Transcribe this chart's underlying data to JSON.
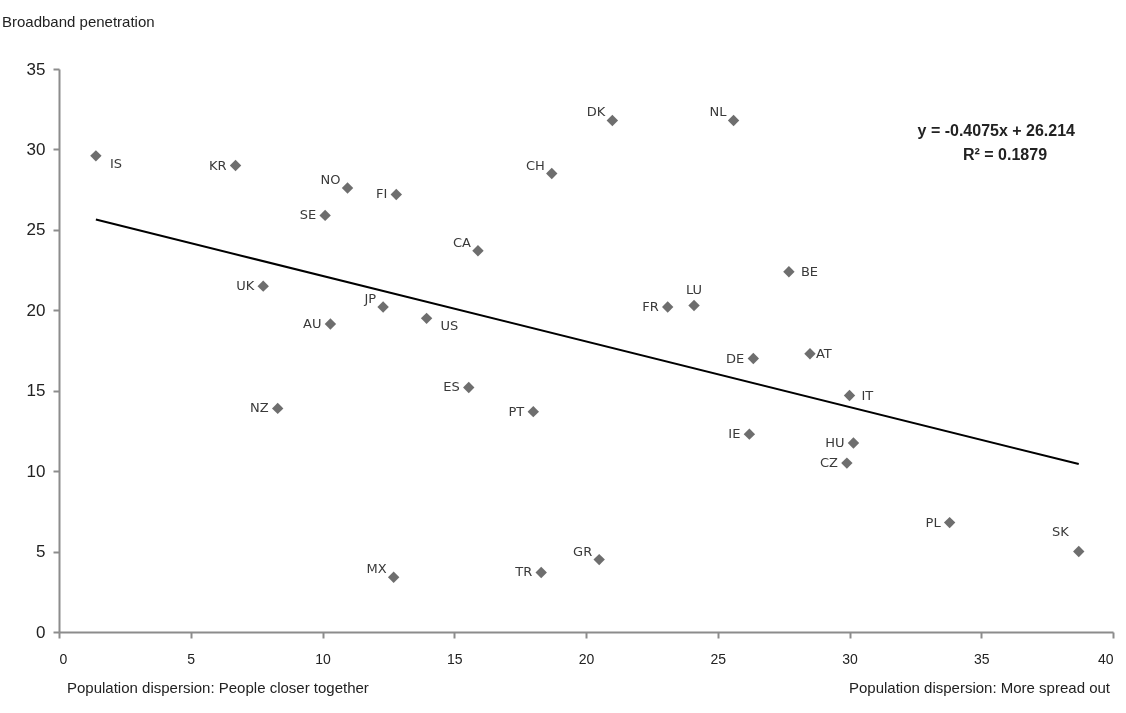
{
  "chart_data": {
    "type": "scatter",
    "ylabel": "Broadband penetration",
    "annotations": [
      "y = -0.4075x + 26.214",
      "R² = 0.1879",
      "Population dispersion: People closer together",
      "Population dispersion: More spread out"
    ],
    "xlim": [
      0,
      40
    ],
    "xticks": [
      0,
      5,
      10,
      15,
      20,
      25,
      30,
      35,
      40
    ],
    "ylim": [
      0,
      35
    ],
    "yticks": [
      0,
      5,
      10,
      15,
      20,
      25,
      30,
      35
    ],
    "grid": false,
    "series": [
      {
        "marker": "diamond",
        "color": "#6e6e6e",
        "x": [
          1.4,
          6.7,
          10.95,
          12.8,
          10.1,
          7.75,
          10.3,
          12.3,
          13.95,
          15.9,
          18.7,
          21.0,
          25.6,
          23.1,
          24.1,
          27.7,
          26.35,
          28.5,
          30.0,
          30.15,
          29.9,
          33.8,
          38.7,
          26.2,
          8.3,
          12.7,
          15.55,
          18.0,
          18.3,
          20.5
        ],
        "values": [
          29.6,
          29.0,
          27.6,
          27.2,
          25.9,
          21.5,
          19.15,
          20.2,
          19.5,
          23.7,
          28.5,
          31.8,
          31.8,
          20.2,
          20.3,
          22.4,
          17.0,
          17.3,
          14.7,
          11.75,
          10.5,
          6.8,
          5.0,
          12.3,
          13.9,
          3.4,
          15.2,
          13.7,
          3.7,
          4.5
        ],
        "value_labels": [
          "IS",
          "KR",
          "NO",
          "FI",
          "SE",
          "UK",
          "AU",
          "JP",
          "US",
          "CA",
          "CH",
          "DK",
          "NL",
          "FR",
          "LU",
          "BE",
          "DE",
          "AT",
          "IT",
          "HU",
          "CZ",
          "PL",
          "SK",
          "IE",
          "NZ",
          "MX",
          "ES",
          "PT",
          "TR",
          "GR"
        ]
      },
      {
        "type": "line",
        "color": "#000000",
        "line_style": "solid",
        "marker": "none",
        "x": [
          1.4,
          38.7
        ],
        "values": [
          25.64,
          10.44
        ]
      }
    ]
  }
}
